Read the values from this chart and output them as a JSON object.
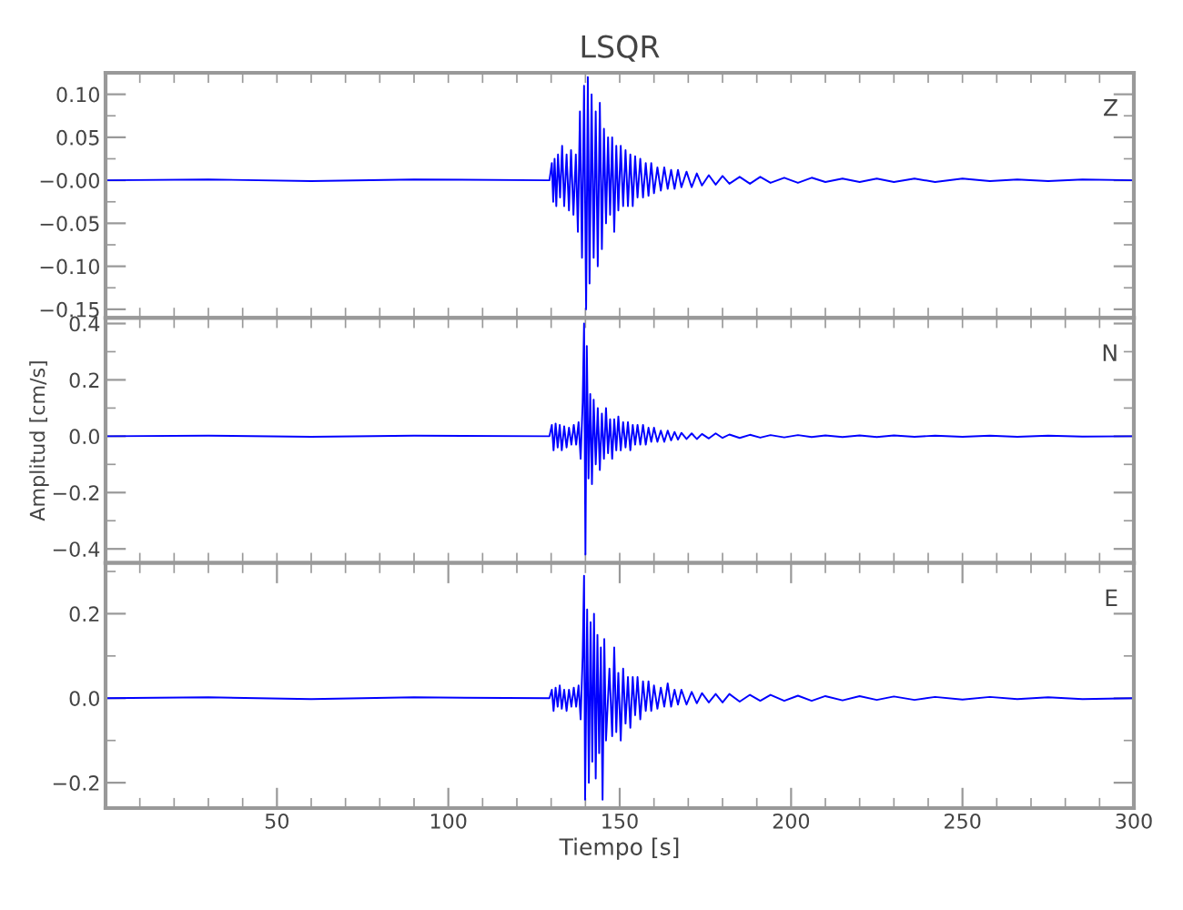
{
  "chart_data": [
    {
      "type": "line",
      "title": "LSQR",
      "annotations": [
        "Z"
      ],
      "tick_labels": "y",
      "xlim": [
        0,
        300
      ],
      "ylim": [
        -0.16,
        0.125
      ],
      "xticks": [
        {
          "value": 10,
          "label": null
        },
        {
          "value": 20,
          "label": null
        },
        {
          "value": 30,
          "label": null
        },
        {
          "value": 40,
          "label": null
        },
        {
          "value": 50,
          "label": null
        },
        {
          "value": 60,
          "label": null
        },
        {
          "value": 70,
          "label": null
        },
        {
          "value": 80,
          "label": null
        },
        {
          "value": 90,
          "label": null
        },
        {
          "value": 100,
          "label": null
        },
        {
          "value": 110,
          "label": null
        },
        {
          "value": 120,
          "label": null
        },
        {
          "value": 130,
          "label": null
        },
        {
          "value": 140,
          "label": null
        },
        {
          "value": 150,
          "label": null
        },
        {
          "value": 160,
          "label": null
        },
        {
          "value": 170,
          "label": null
        },
        {
          "value": 180,
          "label": null
        },
        {
          "value": 190,
          "label": null
        },
        {
          "value": 200,
          "label": null
        },
        {
          "value": 210,
          "label": null
        },
        {
          "value": 220,
          "label": null
        },
        {
          "value": 230,
          "label": null
        },
        {
          "value": 240,
          "label": null
        },
        {
          "value": 250,
          "label": null
        },
        {
          "value": 260,
          "label": null
        },
        {
          "value": 270,
          "label": null
        },
        {
          "value": 280,
          "label": null
        },
        {
          "value": 290,
          "label": null
        },
        {
          "value": 300,
          "label": null
        }
      ],
      "yticks": [
        {
          "value": 0.1,
          "label": "0.10"
        },
        {
          "value": 0.05,
          "label": "0.05"
        },
        {
          "value": 0,
          "label": "−0.00"
        },
        {
          "value": -0.05,
          "label": "−0.05"
        },
        {
          "value": -0.1,
          "label": "−0.10"
        },
        {
          "value": -0.15,
          "label": "−0.15"
        },
        {
          "value": 0.075,
          "label": null
        },
        {
          "value": 0.025,
          "label": null
        },
        {
          "value": -0.025,
          "label": null
        },
        {
          "value": -0.075,
          "label": null
        },
        {
          "value": -0.125,
          "label": null
        }
      ],
      "series": [
        {
          "color": "#0000ff",
          "x": [
            0,
            30,
            60,
            90,
            129.5,
            130.2,
            130.6,
            131,
            131.5,
            132,
            132.6,
            133.2,
            133.8,
            134.5,
            135.2,
            135.8,
            136.5,
            137.2,
            137.8,
            138.4,
            139,
            139.6,
            140.2,
            140.7,
            141.2,
            141.8,
            142.4,
            143,
            143.6,
            144.2,
            144.8,
            145.4,
            146,
            146.6,
            147.2,
            147.8,
            148.4,
            149,
            149.6,
            150.3,
            151,
            151.7,
            152.4,
            153.1,
            153.8,
            154.5,
            155.2,
            156,
            156.8,
            157.6,
            158.4,
            159.2,
            160,
            161,
            162,
            163,
            164,
            165,
            166,
            167,
            168,
            169.5,
            171,
            172.5,
            174,
            176,
            178,
            180,
            182,
            185,
            188,
            191,
            194,
            198,
            202,
            206,
            210,
            215,
            220,
            225,
            230,
            236,
            242,
            250,
            258,
            266,
            275,
            285,
            300
          ],
          "values": [
            0,
            0.001,
            -0.001,
            0.001,
            0,
            0.02,
            -0.025,
            0.025,
            -0.03,
            0.03,
            -0.02,
            0.04,
            -0.03,
            0.03,
            -0.035,
            0.035,
            -0.04,
            0.03,
            -0.06,
            0.08,
            -0.09,
            0.11,
            -0.15,
            0.12,
            -0.12,
            0.1,
            -0.09,
            0.08,
            -0.1,
            0.09,
            -0.08,
            0.06,
            -0.05,
            0.05,
            -0.04,
            0.05,
            -0.06,
            0.04,
            -0.035,
            0.04,
            -0.03,
            0.035,
            -0.03,
            0.03,
            -0.03,
            0.028,
            -0.02,
            0.025,
            -0.02,
            0.02,
            -0.018,
            0.02,
            -0.015,
            0.015,
            -0.012,
            0.015,
            -0.01,
            0.012,
            -0.01,
            0.012,
            -0.008,
            0.01,
            -0.008,
            0.008,
            -0.006,
            0.006,
            -0.005,
            0.005,
            -0.004,
            0.004,
            -0.004,
            0.004,
            -0.003,
            0.003,
            -0.003,
            0.003,
            -0.002,
            0.002,
            -0.002,
            0.002,
            -0.002,
            0.002,
            -0.002,
            0.002,
            -0.001,
            0.001,
            -0.001,
            0.001,
            0
          ]
        }
      ]
    },
    {
      "type": "line",
      "ylabel": "Amplitud [cm/s]",
      "annotations": [
        "N"
      ],
      "tick_labels": "y",
      "xlim": [
        0,
        300
      ],
      "ylim": [
        -0.45,
        0.42
      ],
      "xticks": [
        {
          "value": 10,
          "label": null
        },
        {
          "value": 20,
          "label": null
        },
        {
          "value": 30,
          "label": null
        },
        {
          "value": 40,
          "label": null
        },
        {
          "value": 50,
          "label": null
        },
        {
          "value": 60,
          "label": null
        },
        {
          "value": 70,
          "label": null
        },
        {
          "value": 80,
          "label": null
        },
        {
          "value": 90,
          "label": null
        },
        {
          "value": 100,
          "label": null
        },
        {
          "value": 110,
          "label": null
        },
        {
          "value": 120,
          "label": null
        },
        {
          "value": 130,
          "label": null
        },
        {
          "value": 140,
          "label": null
        },
        {
          "value": 150,
          "label": null
        },
        {
          "value": 160,
          "label": null
        },
        {
          "value": 170,
          "label": null
        },
        {
          "value": 180,
          "label": null
        },
        {
          "value": 190,
          "label": null
        },
        {
          "value": 200,
          "label": null
        },
        {
          "value": 210,
          "label": null
        },
        {
          "value": 220,
          "label": null
        },
        {
          "value": 230,
          "label": null
        },
        {
          "value": 240,
          "label": null
        },
        {
          "value": 250,
          "label": null
        },
        {
          "value": 260,
          "label": null
        },
        {
          "value": 270,
          "label": null
        },
        {
          "value": 280,
          "label": null
        },
        {
          "value": 290,
          "label": null
        },
        {
          "value": 300,
          "label": null
        }
      ],
      "yticks": [
        {
          "value": 0.4,
          "label": "0.4"
        },
        {
          "value": 0.2,
          "label": "0.2"
        },
        {
          "value": 0,
          "label": "0.0"
        },
        {
          "value": -0.2,
          "label": "−0.2"
        },
        {
          "value": -0.4,
          "label": "−0.4"
        },
        {
          "value": 0.3,
          "label": null
        },
        {
          "value": 0.1,
          "label": null
        },
        {
          "value": -0.1,
          "label": null
        },
        {
          "value": -0.3,
          "label": null
        }
      ],
      "series": [
        {
          "color": "#0000ff",
          "x": [
            0,
            30,
            60,
            90,
            129.5,
            130.2,
            130.7,
            131.3,
            131.9,
            132.5,
            133.1,
            133.8,
            134.5,
            135.2,
            135.9,
            136.6,
            137.3,
            138,
            138.6,
            139.2,
            139.6,
            140,
            140.4,
            140.9,
            141.4,
            141.9,
            142.4,
            143,
            143.6,
            144.2,
            144.8,
            145.4,
            146,
            146.6,
            147.2,
            147.8,
            148.4,
            149,
            149.6,
            150.3,
            151,
            151.7,
            152.4,
            153.1,
            153.8,
            154.5,
            155.2,
            156,
            156.8,
            157.6,
            158.4,
            159.2,
            160,
            161,
            162,
            163,
            164,
            165,
            166,
            167,
            168,
            169.5,
            171,
            172.5,
            174,
            176,
            178,
            180,
            182,
            185,
            188,
            191,
            194,
            198,
            202,
            206,
            210,
            215,
            220,
            225,
            230,
            236,
            242,
            250,
            258,
            266,
            275,
            285,
            300
          ],
          "values": [
            0,
            0.002,
            -0.002,
            0.002,
            0,
            0.04,
            -0.05,
            0.045,
            -0.04,
            0.04,
            -0.05,
            0.035,
            -0.04,
            0.03,
            -0.03,
            0.04,
            -0.03,
            0.05,
            -0.08,
            0.12,
            0.4,
            -0.42,
            0.32,
            -0.15,
            0.15,
            -0.17,
            0.13,
            -0.1,
            0.1,
            -0.12,
            0.08,
            -0.08,
            0.1,
            -0.06,
            0.06,
            -0.08,
            0.06,
            -0.05,
            0.07,
            -0.05,
            0.05,
            -0.04,
            0.05,
            -0.05,
            0.04,
            -0.03,
            0.04,
            -0.03,
            0.04,
            -0.03,
            0.03,
            -0.02,
            0.03,
            -0.02,
            0.02,
            -0.02,
            0.02,
            -0.015,
            0.015,
            -0.012,
            0.012,
            -0.01,
            0.01,
            -0.01,
            0.008,
            -0.008,
            0.01,
            -0.006,
            0.006,
            -0.006,
            0.005,
            -0.005,
            0.004,
            -0.004,
            0.004,
            -0.003,
            0.003,
            -0.003,
            0.003,
            -0.003,
            0.003,
            -0.002,
            0.002,
            -0.002,
            0.002,
            -0.002,
            0.002,
            -0.001,
            0
          ]
        }
      ]
    },
    {
      "type": "line",
      "xlabel": "Tiempo [s]",
      "annotations": [
        "E"
      ],
      "xlim": [
        0,
        300
      ],
      "ylim": [
        -0.26,
        0.32
      ],
      "xticks": [
        {
          "value": 10,
          "label": null
        },
        {
          "value": 20,
          "label": null
        },
        {
          "value": 30,
          "label": null
        },
        {
          "value": 40,
          "label": null
        },
        {
          "value": 50,
          "label": "50"
        },
        {
          "value": 60,
          "label": null
        },
        {
          "value": 70,
          "label": null
        },
        {
          "value": 80,
          "label": null
        },
        {
          "value": 90,
          "label": null
        },
        {
          "value": 100,
          "label": "100"
        },
        {
          "value": 110,
          "label": null
        },
        {
          "value": 120,
          "label": null
        },
        {
          "value": 130,
          "label": null
        },
        {
          "value": 140,
          "label": null
        },
        {
          "value": 150,
          "label": "150"
        },
        {
          "value": 160,
          "label": null
        },
        {
          "value": 170,
          "label": null
        },
        {
          "value": 180,
          "label": null
        },
        {
          "value": 190,
          "label": null
        },
        {
          "value": 200,
          "label": "200"
        },
        {
          "value": 210,
          "label": null
        },
        {
          "value": 220,
          "label": null
        },
        {
          "value": 230,
          "label": null
        },
        {
          "value": 240,
          "label": null
        },
        {
          "value": 250,
          "label": "250"
        },
        {
          "value": 260,
          "label": null
        },
        {
          "value": 270,
          "label": null
        },
        {
          "value": 280,
          "label": null
        },
        {
          "value": 290,
          "label": null
        },
        {
          "value": 300,
          "label": "300"
        }
      ],
      "yticks": [
        {
          "value": 0.2,
          "label": "0.2"
        },
        {
          "value": 0,
          "label": "0.0"
        },
        {
          "value": -0.2,
          "label": "−0.2"
        },
        {
          "value": 0.3,
          "label": null
        },
        {
          "value": 0.1,
          "label": null
        },
        {
          "value": -0.1,
          "label": null
        }
      ],
      "series": [
        {
          "color": "#0000ff",
          "x": [
            0,
            30,
            60,
            90,
            129.5,
            130.2,
            130.7,
            131.3,
            131.9,
            132.5,
            133.1,
            133.8,
            134.5,
            135.2,
            135.9,
            136.6,
            137.3,
            138,
            138.6,
            139.2,
            139.6,
            139.9,
            140.5,
            141,
            141.5,
            142,
            142.5,
            143,
            143.5,
            144,
            144.5,
            145,
            145.5,
            146,
            147,
            147.8,
            148.4,
            149,
            149.6,
            150.3,
            151,
            151.7,
            152.4,
            153.1,
            153.8,
            154.5,
            155.2,
            156,
            156.8,
            157.6,
            158.4,
            159.2,
            160,
            161,
            162,
            163,
            164,
            165,
            166,
            167,
            168,
            169.5,
            171,
            172.5,
            174,
            176,
            178,
            180,
            182,
            185,
            188,
            191,
            194,
            198,
            202,
            206,
            210,
            215,
            220,
            225,
            230,
            236,
            242,
            250,
            258,
            266,
            275,
            285,
            300
          ],
          "values": [
            0,
            0.002,
            -0.002,
            0.002,
            0,
            0.02,
            -0.03,
            0.025,
            -0.02,
            0.03,
            -0.025,
            0.02,
            -0.03,
            0.02,
            -0.02,
            0.025,
            -0.02,
            0.03,
            -0.05,
            0.1,
            0.29,
            -0.24,
            0.21,
            -0.2,
            0.18,
            -0.15,
            0.2,
            -0.19,
            0.15,
            -0.13,
            0.12,
            -0.24,
            0.14,
            -0.1,
            0.07,
            -0.09,
            0.12,
            -0.08,
            0.06,
            -0.1,
            0.07,
            -0.06,
            0.05,
            -0.07,
            0.05,
            -0.04,
            0.05,
            -0.05,
            0.04,
            -0.03,
            0.04,
            -0.03,
            0.03,
            -0.025,
            0.025,
            -0.02,
            0.035,
            -0.02,
            0.02,
            -0.015,
            0.02,
            -0.015,
            0.015,
            -0.012,
            0.012,
            -0.01,
            0.01,
            -0.01,
            0.01,
            -0.008,
            0.008,
            -0.006,
            0.008,
            -0.006,
            0.006,
            -0.006,
            0.005,
            -0.005,
            0.005,
            -0.004,
            0.004,
            -0.004,
            0.003,
            -0.003,
            0.003,
            -0.002,
            0.002,
            -0.002,
            0
          ]
        }
      ]
    }
  ]
}
